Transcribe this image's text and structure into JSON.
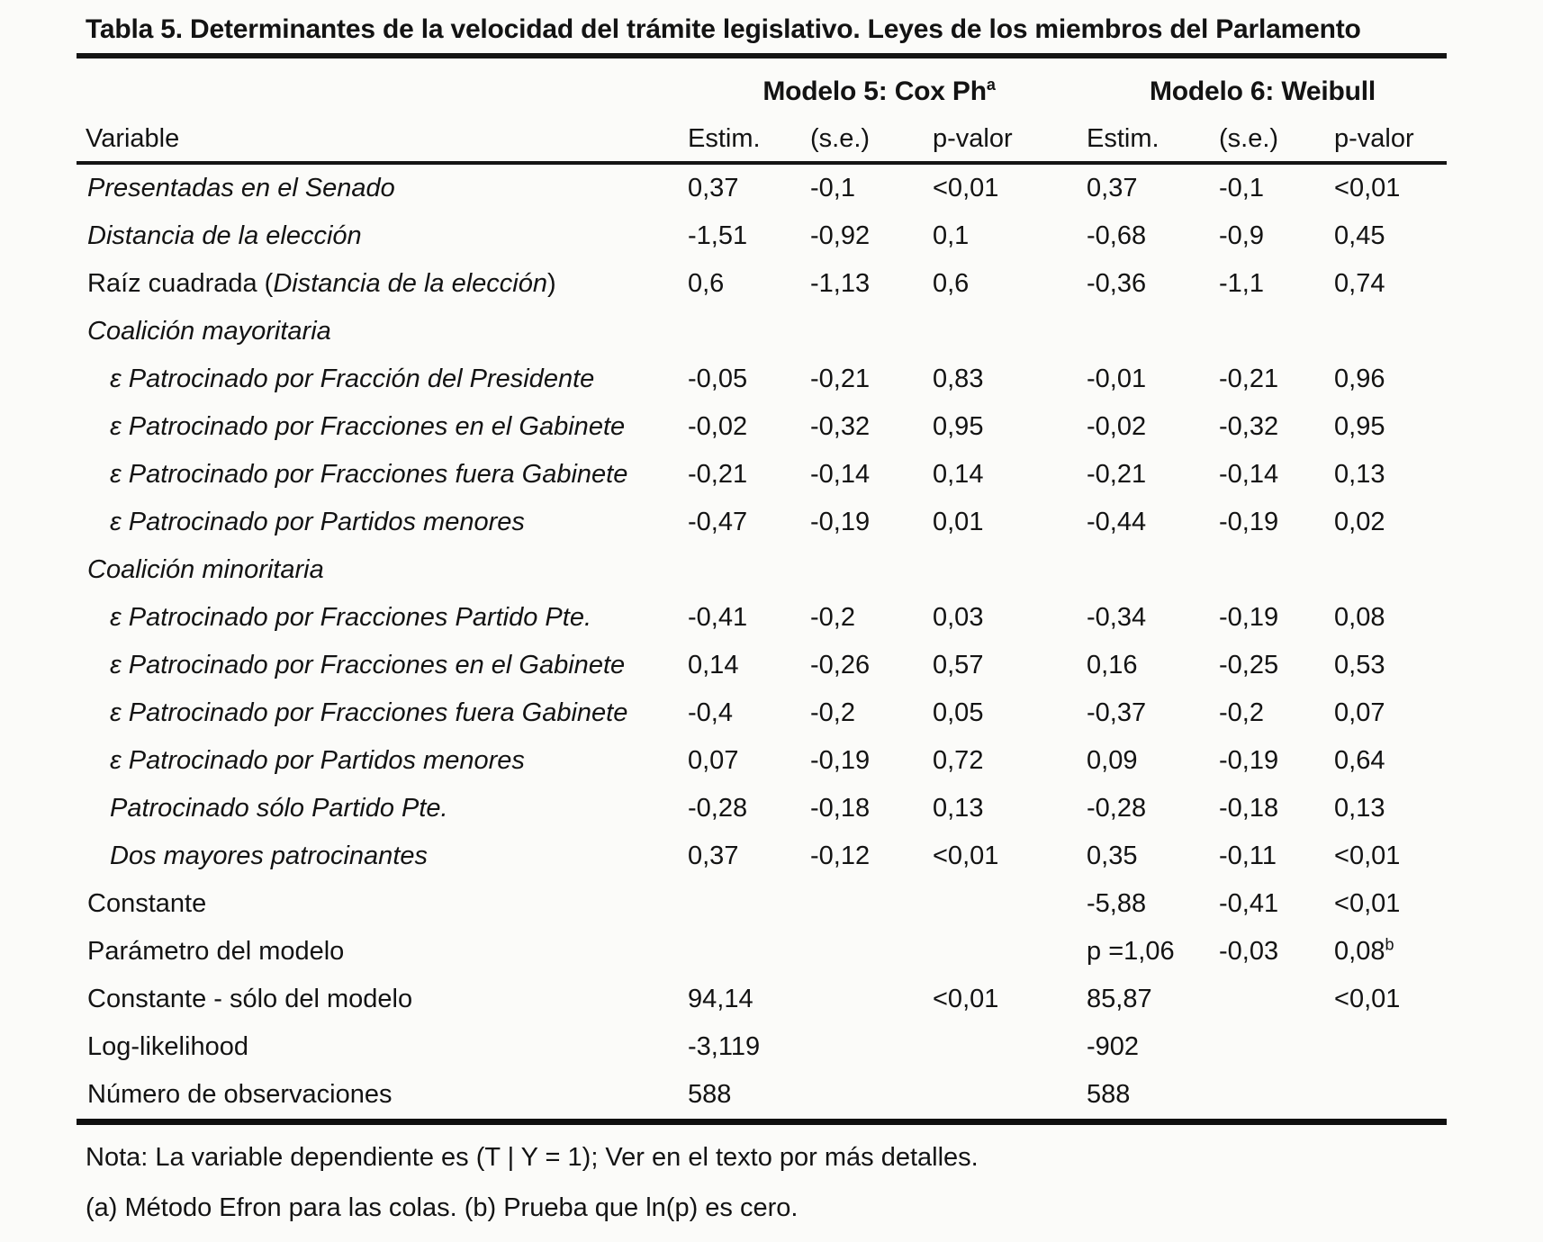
{
  "page": {
    "title": "Tabla 5. Determinantes de la velocidad del trámite legislativo. Leyes de los miembros del Parlamento"
  },
  "table": {
    "model5": {
      "text": "Modelo 5: Cox Ph",
      "sup": "a"
    },
    "model6": {
      "text": "Modelo 6: Weibull",
      "sup": ""
    },
    "columns": [
      "Variable",
      "Estim.",
      "(s.e.)",
      "p-valor",
      "Estim.",
      "(s.e.)",
      "p-valor"
    ],
    "rows": [
      {
        "label": "Presentadas en el Senado",
        "style": "italic",
        "indent": false,
        "values": [
          "0,37",
          "-0,1",
          "<0,01",
          "0,37",
          "-0,1",
          "<0,01"
        ]
      },
      {
        "label": "Distancia de la elección",
        "style": "italic",
        "indent": false,
        "values": [
          "-1,51",
          "-0,92",
          "0,1",
          "-0,68",
          "-0,9",
          "0,45"
        ]
      },
      {
        "label_parts": [
          {
            "text": "Raíz cuadrada (",
            "italic": false
          },
          {
            "text": "Distancia de la elección",
            "italic": true
          },
          {
            "text": ")",
            "italic": false
          }
        ],
        "style": "plain",
        "indent": false,
        "values": [
          "0,6",
          "-1,13",
          "0,6",
          "-0,36",
          "-1,1",
          "0,74"
        ]
      },
      {
        "label": "Coalición mayoritaria",
        "style": "section",
        "indent": false,
        "values": [
          "",
          "",
          "",
          "",
          "",
          ""
        ]
      },
      {
        "label": "ε Patrocinado por Fracción del Presidente",
        "style": "italic",
        "indent": true,
        "values": [
          "-0,05",
          "-0,21",
          "0,83",
          "-0,01",
          "-0,21",
          "0,96"
        ]
      },
      {
        "label": "ε Patrocinado por Fracciones en el Gabinete",
        "style": "italic",
        "indent": true,
        "values": [
          "-0,02",
          "-0,32",
          "0,95",
          "-0,02",
          "-0,32",
          "0,95"
        ]
      },
      {
        "label": "ε Patrocinado por Fracciones fuera Gabinete",
        "style": "italic",
        "indent": true,
        "values": [
          "-0,21",
          "-0,14",
          "0,14",
          "-0,21",
          "-0,14",
          "0,13"
        ]
      },
      {
        "label": "ε Patrocinado por Partidos menores",
        "style": "italic",
        "indent": true,
        "values": [
          "-0,47",
          "-0,19",
          "0,01",
          "-0,44",
          "-0,19",
          "0,02"
        ]
      },
      {
        "label": "Coalición minoritaria",
        "style": "section",
        "indent": false,
        "values": [
          "",
          "",
          "",
          "",
          "",
          ""
        ]
      },
      {
        "label": "ε Patrocinado por Fracciones Partido Pte.",
        "style": "italic",
        "indent": true,
        "values": [
          "-0,41",
          "-0,2",
          "0,03",
          "-0,34",
          "-0,19",
          "0,08"
        ]
      },
      {
        "label": "ε Patrocinado por Fracciones en el Gabinete",
        "style": "italic",
        "indent": true,
        "values": [
          "0,14",
          "-0,26",
          "0,57",
          "0,16",
          "-0,25",
          "0,53"
        ]
      },
      {
        "label": "ε Patrocinado por Fracciones fuera Gabinete",
        "style": "italic",
        "indent": true,
        "values": [
          "-0,4",
          "-0,2",
          "0,05",
          "-0,37",
          "-0,2",
          "0,07"
        ]
      },
      {
        "label": "ε Patrocinado por Partidos menores",
        "style": "italic",
        "indent": true,
        "values": [
          "0,07",
          "-0,19",
          "0,72",
          "0,09",
          "-0,19",
          "0,64"
        ]
      },
      {
        "label": "Patrocinado sólo Partido Pte.",
        "style": "italic",
        "indent": true,
        "values": [
          "-0,28",
          "-0,18",
          "0,13",
          "-0,28",
          "-0,18",
          "0,13"
        ]
      },
      {
        "label": "Dos mayores patrocinantes",
        "style": "italic",
        "indent": true,
        "values": [
          "0,37",
          "-0,12",
          "<0,01",
          "0,35",
          "-0,11",
          "<0,01"
        ]
      },
      {
        "label": "Constante",
        "style": "plain",
        "indent": false,
        "values": [
          "",
          "",
          "",
          "-5,88",
          "-0,41",
          "<0,01"
        ]
      },
      {
        "label": "Parámetro del modelo",
        "style": "plain",
        "indent": false,
        "values": [
          "",
          "",
          "",
          "p =1,06",
          "-0,03",
          "0,08^b"
        ]
      },
      {
        "label": "Constante - sólo del modelo",
        "style": "plain",
        "indent": false,
        "values": [
          "94,14",
          "",
          "<0,01",
          "85,87",
          "",
          "<0,01"
        ]
      },
      {
        "label": "Log-likelihood",
        "style": "plain",
        "indent": false,
        "values": [
          "-3,119",
          "",
          "",
          "-902",
          "",
          ""
        ]
      },
      {
        "label": "Número de observaciones",
        "style": "plain",
        "indent": false,
        "values": [
          "588",
          "",
          "",
          "588",
          "",
          ""
        ]
      }
    ],
    "notes": [
      "Nota: La variable dependiente es (T | Y = 1); Ver en el texto por más detalles.",
      "(a) Método Efron para las colas. (b) Prueba que ln(p) es cero."
    ]
  }
}
